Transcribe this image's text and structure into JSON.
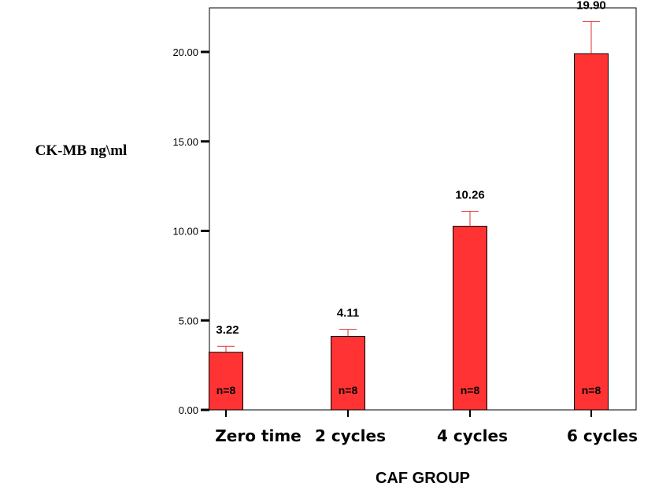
{
  "chart_data": {
    "type": "bar",
    "categories": [
      "Zero time",
      "2 cycles",
      "4 cycles",
      "6 cycles"
    ],
    "values": [
      3.22,
      4.11,
      10.26,
      19.9
    ],
    "value_labels": [
      "3.22",
      "4.11",
      "10.26",
      "19.90"
    ],
    "error_upper": [
      3.55,
      4.5,
      11.1,
      21.7
    ],
    "n_labels": [
      "n=8",
      "n=8",
      "n=8",
      "n=8"
    ],
    "ylabel": "CK-MB ng\\ml",
    "xlabel": "CAF GROUP",
    "ylim": [
      0,
      22.5
    ],
    "yticks": [
      0,
      5,
      10,
      15,
      20
    ],
    "ytick_labels": [
      "0.00",
      "5.00",
      "10.00",
      "15.00",
      "20.00"
    ],
    "bar_color": "#ff3333",
    "error_color": "#e03030",
    "grid": false
  }
}
